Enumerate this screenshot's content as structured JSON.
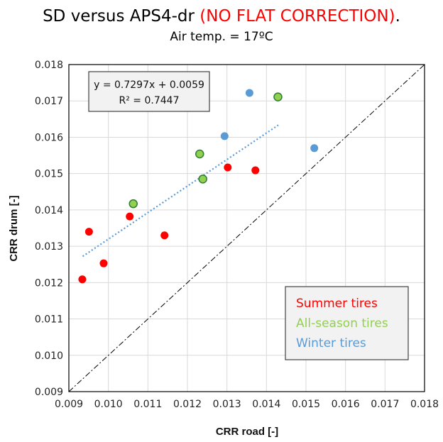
{
  "title": {
    "main": "SD versus APS4-dr ",
    "highlight": "(NO FLAT CORRECTION)",
    "end": ".",
    "highlight_color": "#ff0000",
    "subtitle": "Air temp. = 17ºC"
  },
  "chart_data": {
    "type": "scatter",
    "xlabel": "CRR road [-]",
    "ylabel": "CRR drum [-]",
    "xlim": [
      0.009,
      0.018
    ],
    "ylim": [
      0.009,
      0.018
    ],
    "x_ticks": [
      "0.009",
      "0.010",
      "0.011",
      "0.012",
      "0.013",
      "0.014",
      "0.015",
      "0.016",
      "0.017",
      "0.018"
    ],
    "y_ticks": [
      "0.009",
      "0.010",
      "0.011",
      "0.012",
      "0.013",
      "0.014",
      "0.015",
      "0.016",
      "0.017",
      "0.018"
    ],
    "grid": true,
    "series": [
      {
        "name": "Summer tires",
        "color": "#ff0000",
        "points": [
          {
            "x": 0.00934,
            "y": 0.01209
          },
          {
            "x": 0.00951,
            "y": 0.0134
          },
          {
            "x": 0.00988,
            "y": 0.01253
          },
          {
            "x": 0.01054,
            "y": 0.01382
          },
          {
            "x": 0.01142,
            "y": 0.0133
          },
          {
            "x": 0.01302,
            "y": 0.01517
          },
          {
            "x": 0.01372,
            "y": 0.01509
          }
        ]
      },
      {
        "name": "All-season tires",
        "color": "#92d050",
        "stroke": "#2e7d32",
        "points": [
          {
            "x": 0.01063,
            "y": 0.01417
          },
          {
            "x": 0.01231,
            "y": 0.01554
          },
          {
            "x": 0.01239,
            "y": 0.01485
          },
          {
            "x": 0.01429,
            "y": 0.01711
          }
        ]
      },
      {
        "name": "Winter tires",
        "color": "#5b9bd5",
        "points": [
          {
            "x": 0.01294,
            "y": 0.01603
          },
          {
            "x": 0.01357,
            "y": 0.01722
          },
          {
            "x": 0.01521,
            "y": 0.0157
          }
        ]
      }
    ],
    "trendline": {
      "slope": 0.7297,
      "intercept": 0.0059,
      "x_range": [
        0.00935,
        0.0143
      ],
      "color": "#5b9bd5",
      "equation_label": "y = 0.7297x + 0.0059",
      "r2_label": "R² = 0.7447"
    },
    "reference_line": {
      "type": "y=x",
      "color": "#000000",
      "style": "dash-dot"
    },
    "legend": {
      "placement": "bottom-right",
      "background": "#f2f2f2"
    }
  }
}
